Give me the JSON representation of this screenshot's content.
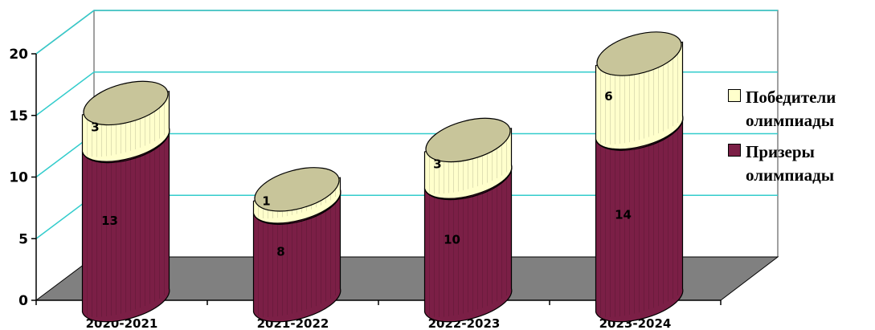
{
  "chart_data": {
    "type": "bar",
    "stacked": true,
    "categories": [
      "2020-2021",
      "2021-2022",
      "2022-2023",
      "2023-2024"
    ],
    "series": [
      {
        "name": "Призеры олимпиады",
        "values": [
          13,
          8,
          10,
          14
        ],
        "color": "#7B1F46",
        "top_color": "#C8C59A"
      },
      {
        "name": "Победители олимпиады",
        "values": [
          3,
          1,
          3,
          6
        ],
        "color": "#FFFFCC",
        "top_color": "#C8C59A"
      }
    ],
    "yticks": [
      "0",
      "5",
      "10",
      "15",
      "20"
    ],
    "ylim": [
      0,
      20
    ],
    "grid": true,
    "grid_color": "#33CCCC",
    "floor_color": "#808080",
    "legend_position": "right",
    "title": "",
    "xlabel": "",
    "ylabel": ""
  }
}
